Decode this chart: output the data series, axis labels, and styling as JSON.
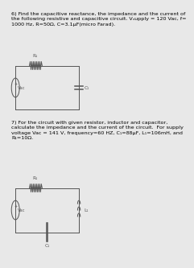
{
  "bg_color": "#e8e8e8",
  "text_color": "#000000",
  "circuit_color": "#555555",
  "q6_text": "6) Find the capacitive reactance, the impedance and the current of\nthe following resistive and capacitive circuit. Vₛupply = 120 Vac, f=\n1000 Hz, R=50Ω, C=3.1µF(micro Farad).",
  "q7_text": "7) For the circuit with given resistor, inductor and capacitor,\ncalculate the impedance and the current of the circuit.  For supply\nvoltage Vac = 141 V, frequency=60 HZ, C₁=88µF, L₁=106mH, and\nR₁=10Ω.",
  "text_fontsize": 4.6,
  "label_fontsize": 4.2,
  "circ1": {
    "bx": 0.07,
    "by": 0.595,
    "bw": 0.6,
    "bh": 0.175,
    "R_label": "R₁",
    "C_label": "C₁",
    "V_label": "Vac"
  },
  "circ2": {
    "bx": 0.07,
    "by": 0.11,
    "bw": 0.6,
    "bh": 0.175,
    "R_label": "R₁",
    "C_label": "C₁",
    "L_label": "L₁",
    "V_label": "Vac"
  }
}
